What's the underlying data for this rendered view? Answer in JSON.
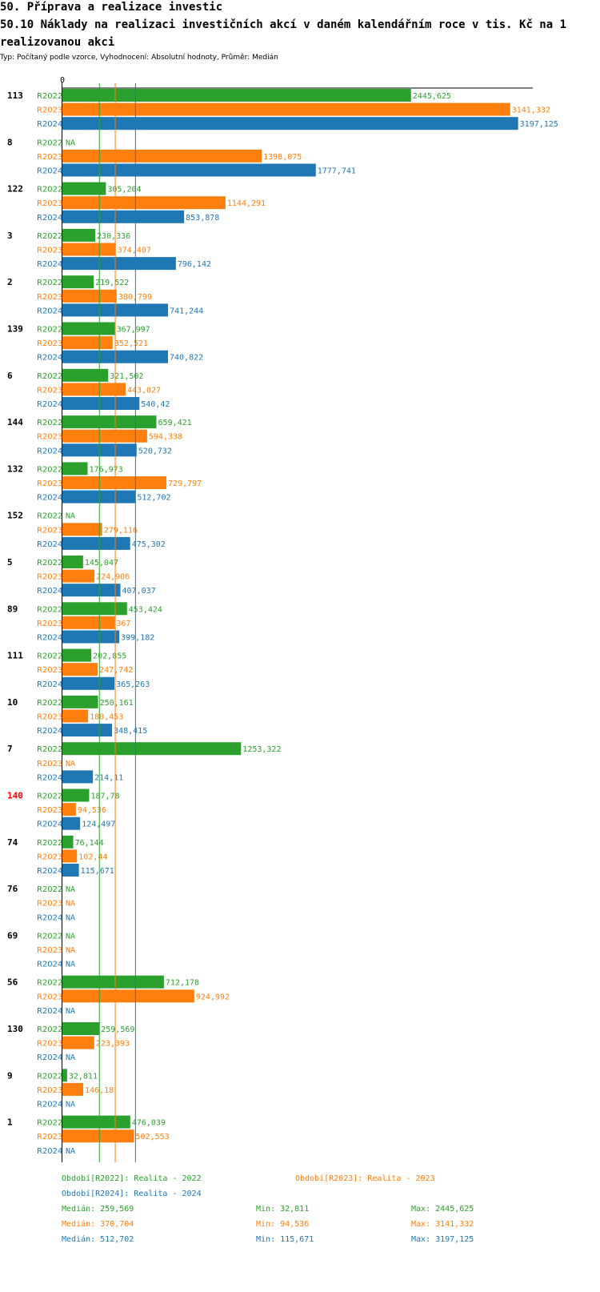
{
  "header": {
    "title": "50. Příprava a realizace investic",
    "subtitle": "50.10 Náklady na realizaci investičních akcí v daném kalendářním roce v tis. Kč na 1 realizovanou akci",
    "meta": "Typ: Počítaný podle vzorce, Vyhodnocení: Absolutní hodnoty, Průměr: Medián"
  },
  "colors": {
    "R2022": "#2ca02c",
    "R2023": "#ff7f0e",
    "R2024": "#1f77b4",
    "highlight": "#ff0000"
  },
  "chart_data": {
    "type": "bar",
    "orientation": "horizontal",
    "title": "50.10 Náklady na realizaci investičních akcí v daném kalendářním roce v tis. Kč na 1 realizovanou akci",
    "xlim": [
      0,
      3300
    ],
    "x_tick_label": "0",
    "na_label": "NA",
    "series_names": [
      "R2022",
      "R2023",
      "R2024"
    ],
    "groups": [
      {
        "label": "113",
        "values": [
          2445.625,
          3141.332,
          3197.125
        ],
        "labels": [
          "2445,625",
          "3141,332",
          "3197,125"
        ]
      },
      {
        "label": "8",
        "values": [
          null,
          1398.075,
          1777.741
        ],
        "labels": [
          "NA",
          "1398,075",
          "1777,741"
        ]
      },
      {
        "label": "122",
        "values": [
          305.204,
          1144.291,
          853.878
        ],
        "labels": [
          "305,204",
          "1144,291",
          "853,878"
        ]
      },
      {
        "label": "3",
        "values": [
          230.336,
          374.407,
          796.142
        ],
        "labels": [
          "230,336",
          "374,407",
          "796,142"
        ]
      },
      {
        "label": "2",
        "values": [
          219.522,
          380.799,
          741.244
        ],
        "labels": [
          "219,522",
          "380,799",
          "741,244"
        ]
      },
      {
        "label": "139",
        "values": [
          367.997,
          352.521,
          740.822
        ],
        "labels": [
          "367,997",
          "352,521",
          "740,822"
        ]
      },
      {
        "label": "6",
        "values": [
          321.502,
          443.027,
          540.42
        ],
        "labels": [
          "321,502",
          "443,027",
          "540,42"
        ]
      },
      {
        "label": "144",
        "values": [
          659.421,
          594.338,
          520.732
        ],
        "labels": [
          "659,421",
          "594,338",
          "520,732"
        ]
      },
      {
        "label": "132",
        "values": [
          176.973,
          729.797,
          512.702
        ],
        "labels": [
          "176,973",
          "729,797",
          "512,702"
        ]
      },
      {
        "label": "152",
        "values": [
          null,
          279.116,
          475.302
        ],
        "labels": [
          "NA",
          "279,116",
          "475,302"
        ]
      },
      {
        "label": "5",
        "values": [
          145.047,
          224.906,
          407.037
        ],
        "labels": [
          "145,047",
          "224,906",
          "407,037"
        ]
      },
      {
        "label": "89",
        "values": [
          453.424,
          367,
          399.182
        ],
        "labels": [
          "453,424",
          "367",
          "399,182"
        ]
      },
      {
        "label": "111",
        "values": [
          202.855,
          247.742,
          365.263
        ],
        "labels": [
          "202,855",
          "247,742",
          "365,263"
        ]
      },
      {
        "label": "10",
        "values": [
          250.161,
          180.453,
          348.415
        ],
        "labels": [
          "250,161",
          "180,453",
          "348,415"
        ]
      },
      {
        "label": "7",
        "values": [
          1253.322,
          null,
          214.11
        ],
        "labels": [
          "1253,322",
          "NA",
          "214,11"
        ]
      },
      {
        "label": "140",
        "highlight": true,
        "values": [
          187.78,
          94.536,
          124.497
        ],
        "labels": [
          "187,78",
          "94,536",
          "124,497"
        ]
      },
      {
        "label": "74",
        "values": [
          76.144,
          102.44,
          115.671
        ],
        "labels": [
          "76,144",
          "102,44",
          "115,671"
        ]
      },
      {
        "label": "76",
        "values": [
          null,
          null,
          null
        ],
        "labels": [
          "NA",
          "NA",
          "NA"
        ]
      },
      {
        "label": "69",
        "values": [
          null,
          null,
          null
        ],
        "labels": [
          "NA",
          "NA",
          "NA"
        ]
      },
      {
        "label": "56",
        "values": [
          712.178,
          924.992,
          null
        ],
        "labels": [
          "712,178",
          "924,992",
          "NA"
        ]
      },
      {
        "label": "130",
        "values": [
          259.569,
          223.393,
          null
        ],
        "labels": [
          "259,569",
          "223,393",
          "NA"
        ]
      },
      {
        "label": "9",
        "values": [
          32.811,
          146.18,
          null
        ],
        "labels": [
          "32,811",
          "146,18",
          "NA"
        ]
      },
      {
        "label": "1",
        "values": [
          476.039,
          502.553,
          null
        ],
        "labels": [
          "476,039",
          "502,553",
          "NA"
        ]
      }
    ],
    "medians": [
      259.569,
      370.704,
      512.702
    ]
  },
  "legend": {
    "periods": [
      "Období[R2022]: Realita - 2022",
      "Období[R2023]: Realita - 2023",
      "Období[R2024]: Realita - 2024"
    ],
    "stats": [
      {
        "median": "Medián: 259,569",
        "min": "Min: 32,811",
        "max": "Max: 2445,625"
      },
      {
        "median": "Medián: 370,704",
        "min": "Min: 94,536",
        "max": "Max: 3141,332"
      },
      {
        "median": "Medián: 512,702",
        "min": "Min: 115,671",
        "max": "Max: 3197,125"
      }
    ]
  }
}
